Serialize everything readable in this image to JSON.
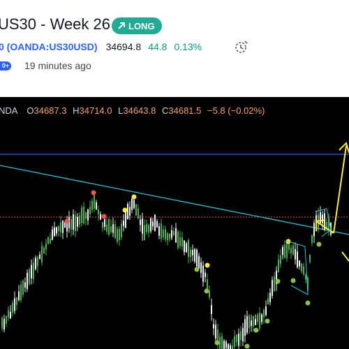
{
  "idea": {
    "title": "US30 - Week 26",
    "badge": "LONG",
    "symbol": "0 (OANDA:US30USD)",
    "price": "34694.8",
    "change": "44.8",
    "change_pct": "0.13%",
    "pill": "0+",
    "time_ago": "19 minutes ago"
  },
  "chart": {
    "provider": "NDA",
    "o_label": "O",
    "o": "34687.3",
    "h_label": "H",
    "h": "34714.0",
    "l_label": "L",
    "l": "34643.8",
    "c_label": "C",
    "c": "34681.5",
    "change": "−5.8 (−0.02%)"
  },
  "colors": {
    "accent_green": "#22ab94",
    "link_blue": "#2962ff",
    "up_green": "#089981",
    "candle_up": "#4caf50",
    "candle_down": "#f0f3f5",
    "trendline": "#26c6da",
    "hline": "#2962ff",
    "dot_red": "#ef5350",
    "dot_yellow": "#ffeb3b",
    "dot_green": "#8bc34a",
    "arrow_yellow": "#ffeb3b"
  },
  "icons": [
    "arrow-up-right-icon",
    "alert-clock-icon"
  ]
}
